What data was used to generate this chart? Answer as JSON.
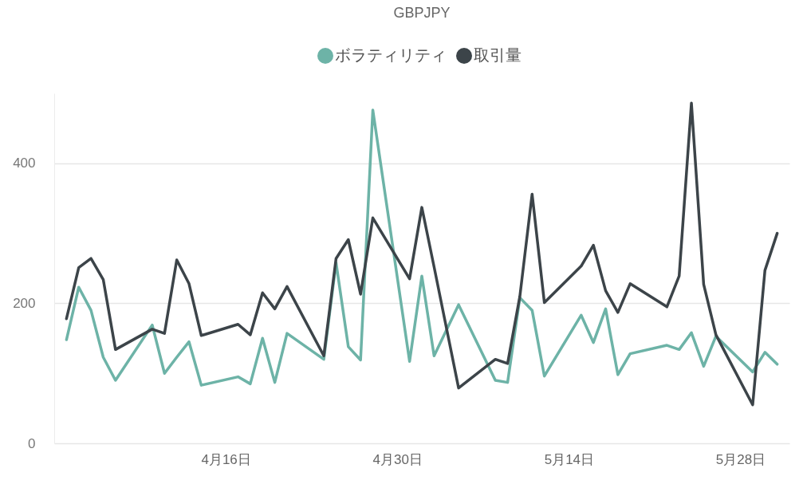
{
  "chart_data": {
    "type": "line",
    "title": "GBPJPY",
    "x": [
      "--04-03",
      "--04-04",
      "--04-05",
      "--04-06",
      "--04-07",
      "--04-10",
      "--04-11",
      "--04-12",
      "--04-13",
      "--04-14",
      "--04-17",
      "--04-18",
      "--04-19",
      "--04-20",
      "--04-21",
      "--04-24",
      "--04-25",
      "--04-26",
      "--04-27",
      "--04-28",
      "--05-01",
      "--05-02",
      "--05-03",
      "--05-05",
      "--05-08",
      "--05-09",
      "--05-10",
      "--05-11",
      "--05-12",
      "--05-15",
      "--05-16",
      "--05-17",
      "--05-18",
      "--05-19",
      "--05-22",
      "--05-23",
      "--05-24",
      "--05-25",
      "--05-26",
      "--05-29",
      "--05-30",
      "--05-31"
    ],
    "series": [
      {
        "name": "ボラティリティ",
        "color": "#6db3a7",
        "values": [
          148,
          223,
          190,
          123,
          90,
          169,
          100,
          123,
          145,
          83,
          95,
          85,
          150,
          87,
          157,
          120,
          258,
          138,
          119,
          476,
          117,
          239,
          125,
          198,
          90,
          87,
          208,
          190,
          96,
          183,
          144,
          192,
          98,
          128,
          140,
          134,
          158,
          110,
          153,
          102,
          130,
          113
        ]
      },
      {
        "name": "取引量",
        "color": "#3c4449",
        "values": [
          178,
          251,
          264,
          234,
          134,
          163,
          157,
          262,
          228,
          154,
          170,
          155,
          215,
          192,
          224,
          125,
          264,
          291,
          213,
          322,
          235,
          337,
          252,
          79,
          120,
          114,
          210,
          356,
          201,
          253,
          283,
          218,
          187,
          228,
          195,
          239,
          486,
          227,
          155,
          55,
          247,
          300
        ]
      }
    ],
    "xlim": [
      "--04-02",
      "--06-01"
    ],
    "xticks": [
      {
        "value": "--04-16",
        "label": "4月16日"
      },
      {
        "value": "--04-30",
        "label": "4月30日"
      },
      {
        "value": "--05-14",
        "label": "5月14日"
      },
      {
        "value": "--05-28",
        "label": "5月28日"
      }
    ],
    "ylim": [
      0,
      500
    ],
    "yticks": [
      0,
      200,
      400
    ],
    "grid": "y",
    "legend": "top",
    "line_style": "solid"
  }
}
